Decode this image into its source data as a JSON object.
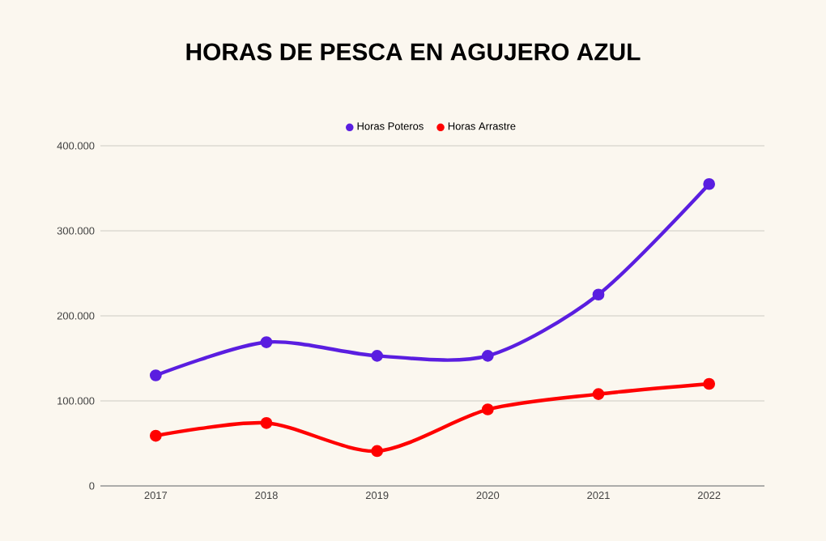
{
  "chart_data": {
    "type": "line",
    "title": "HORAS DE PESCA EN AGUJERO AZUL",
    "categories": [
      "2017",
      "2018",
      "2019",
      "2020",
      "2021",
      "2022"
    ],
    "series": [
      {
        "name": "Horas Poteros",
        "color": "#5a1ee0",
        "values": [
          130000,
          169000,
          153000,
          153000,
          225000,
          355000
        ]
      },
      {
        "name": "Horas Arrastre",
        "color": "#ff0000",
        "values": [
          59000,
          74000,
          41000,
          90000,
          108000,
          120000
        ]
      }
    ],
    "ylim": [
      0,
      400000
    ],
    "yticks": [
      {
        "value": 0,
        "label": "0"
      },
      {
        "value": 100000,
        "label": "100.000"
      },
      {
        "value": 200000,
        "label": "200.000"
      },
      {
        "value": 300000,
        "label": "300.000"
      },
      {
        "value": 400000,
        "label": "400.000"
      }
    ],
    "grid": "y",
    "legend": "top",
    "marker": "circle",
    "line_style": "solid"
  }
}
